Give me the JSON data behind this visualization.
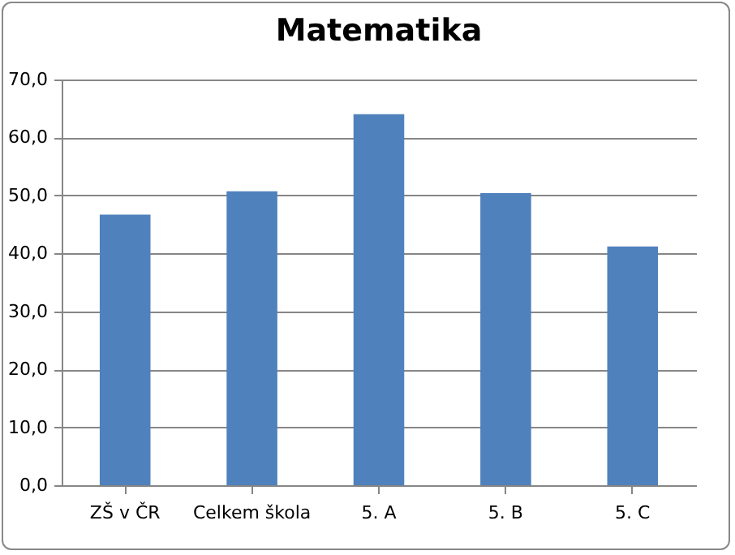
{
  "chart_data": {
    "type": "bar",
    "title": "Matematika",
    "categories": [
      "ZŠ v ČR",
      "Celkem škola",
      "5. A",
      "5. B",
      "5. C"
    ],
    "values": [
      46.7,
      50.7,
      64.0,
      50.4,
      41.2
    ],
    "color": "#4f81bd",
    "ylim": [
      0,
      70
    ],
    "yticks": [
      {
        "value": 0,
        "label": "0,0"
      },
      {
        "value": 10,
        "label": "10,0"
      },
      {
        "value": 20,
        "label": "20,0"
      },
      {
        "value": 30,
        "label": "30,0"
      },
      {
        "value": 40,
        "label": "40,0"
      },
      {
        "value": 50,
        "label": "50,0"
      },
      {
        "value": 60,
        "label": "60,0"
      },
      {
        "value": 70,
        "label": "70,0"
      }
    ],
    "grid": "y"
  }
}
